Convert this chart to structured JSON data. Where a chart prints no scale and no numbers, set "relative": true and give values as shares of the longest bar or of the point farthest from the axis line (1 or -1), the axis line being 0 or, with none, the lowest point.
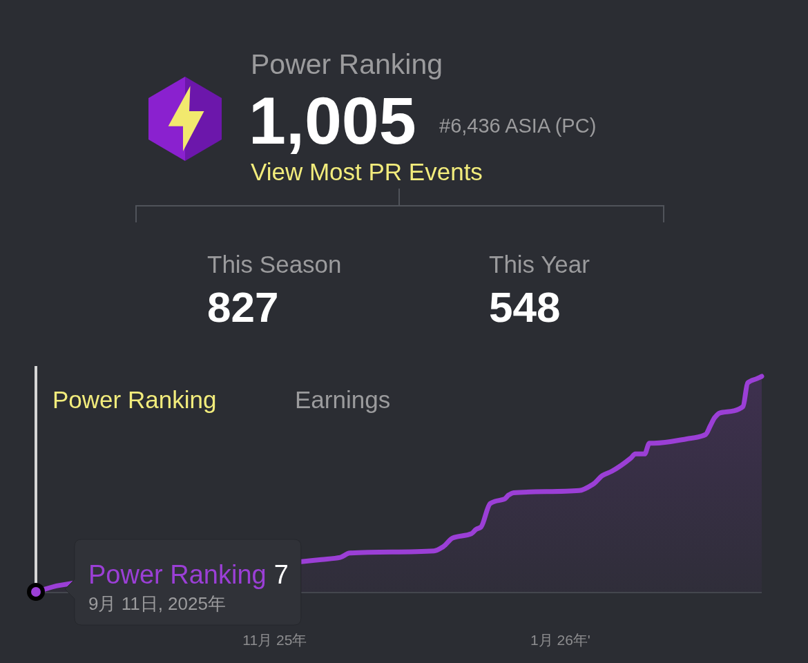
{
  "chart_data": [
    {
      "type": "other",
      "title": "Power Ranking",
      "annotations": [
        "1,005",
        "#6,436 ASIA (PC)",
        "View Most PR Events",
        "This Season",
        "827",
        "This Year",
        "548"
      ]
    },
    {
      "type": "area",
      "title": "Power Ranking",
      "relative": true,
      "x": [
        "2025-09-11",
        "2025-09-16",
        "2025-11-11",
        "2025-11-15",
        "2025-11-17",
        "2025-12-05",
        "2025-12-07",
        "2025-12-09",
        "2025-12-13",
        "2025-12-14",
        "2025-12-15",
        "2025-12-17",
        "2025-12-18",
        "2025-12-20",
        "2025-12-21",
        "2025-12-22",
        "2026-01-05",
        "2026-01-08",
        "2026-01-10",
        "2026-01-12",
        "2026-01-16",
        "2026-01-17",
        "2026-01-19",
        "2026-01-20",
        "2026-01-21",
        "2026-01-28",
        "2026-02-01",
        "2026-02-02",
        "2026-02-03",
        "2026-02-04",
        "2026-02-07",
        "2026-02-09",
        "2026-02-10",
        "2026-02-12",
        "2026-02-13"
      ],
      "xlim": [
        "2025-09-11",
        "2026-02-13"
      ],
      "xticks": [
        {
          "value": "2025-11-01",
          "label": "11月 25年"
        },
        {
          "value": "2026-01-01",
          "label": "1月 26年'"
        }
      ],
      "series": [
        {
          "name": "Power Ranking",
          "color": "#9b3fd6",
          "values": [
            0,
            0.03,
            0.15,
            0.16,
            0.18,
            0.19,
            0.21,
            0.25,
            0.27,
            0.29,
            0.3,
            0.41,
            0.42,
            0.43,
            0.45,
            0.46,
            0.47,
            0.5,
            0.54,
            0.56,
            0.62,
            0.64,
            0.64,
            0.69,
            0.69,
            0.71,
            0.73,
            0.77,
            0.81,
            0.83,
            0.84,
            0.86,
            0.97,
            0.99,
            1
          ]
        }
      ],
      "ref_lines": [
        {
          "axis": "x",
          "value": "2025-09-11",
          "color": "#d6d6d6"
        }
      ],
      "annotations": [
        "Earnings",
        "7",
        "9月 11日, 2025年"
      ]
    }
  ]
}
